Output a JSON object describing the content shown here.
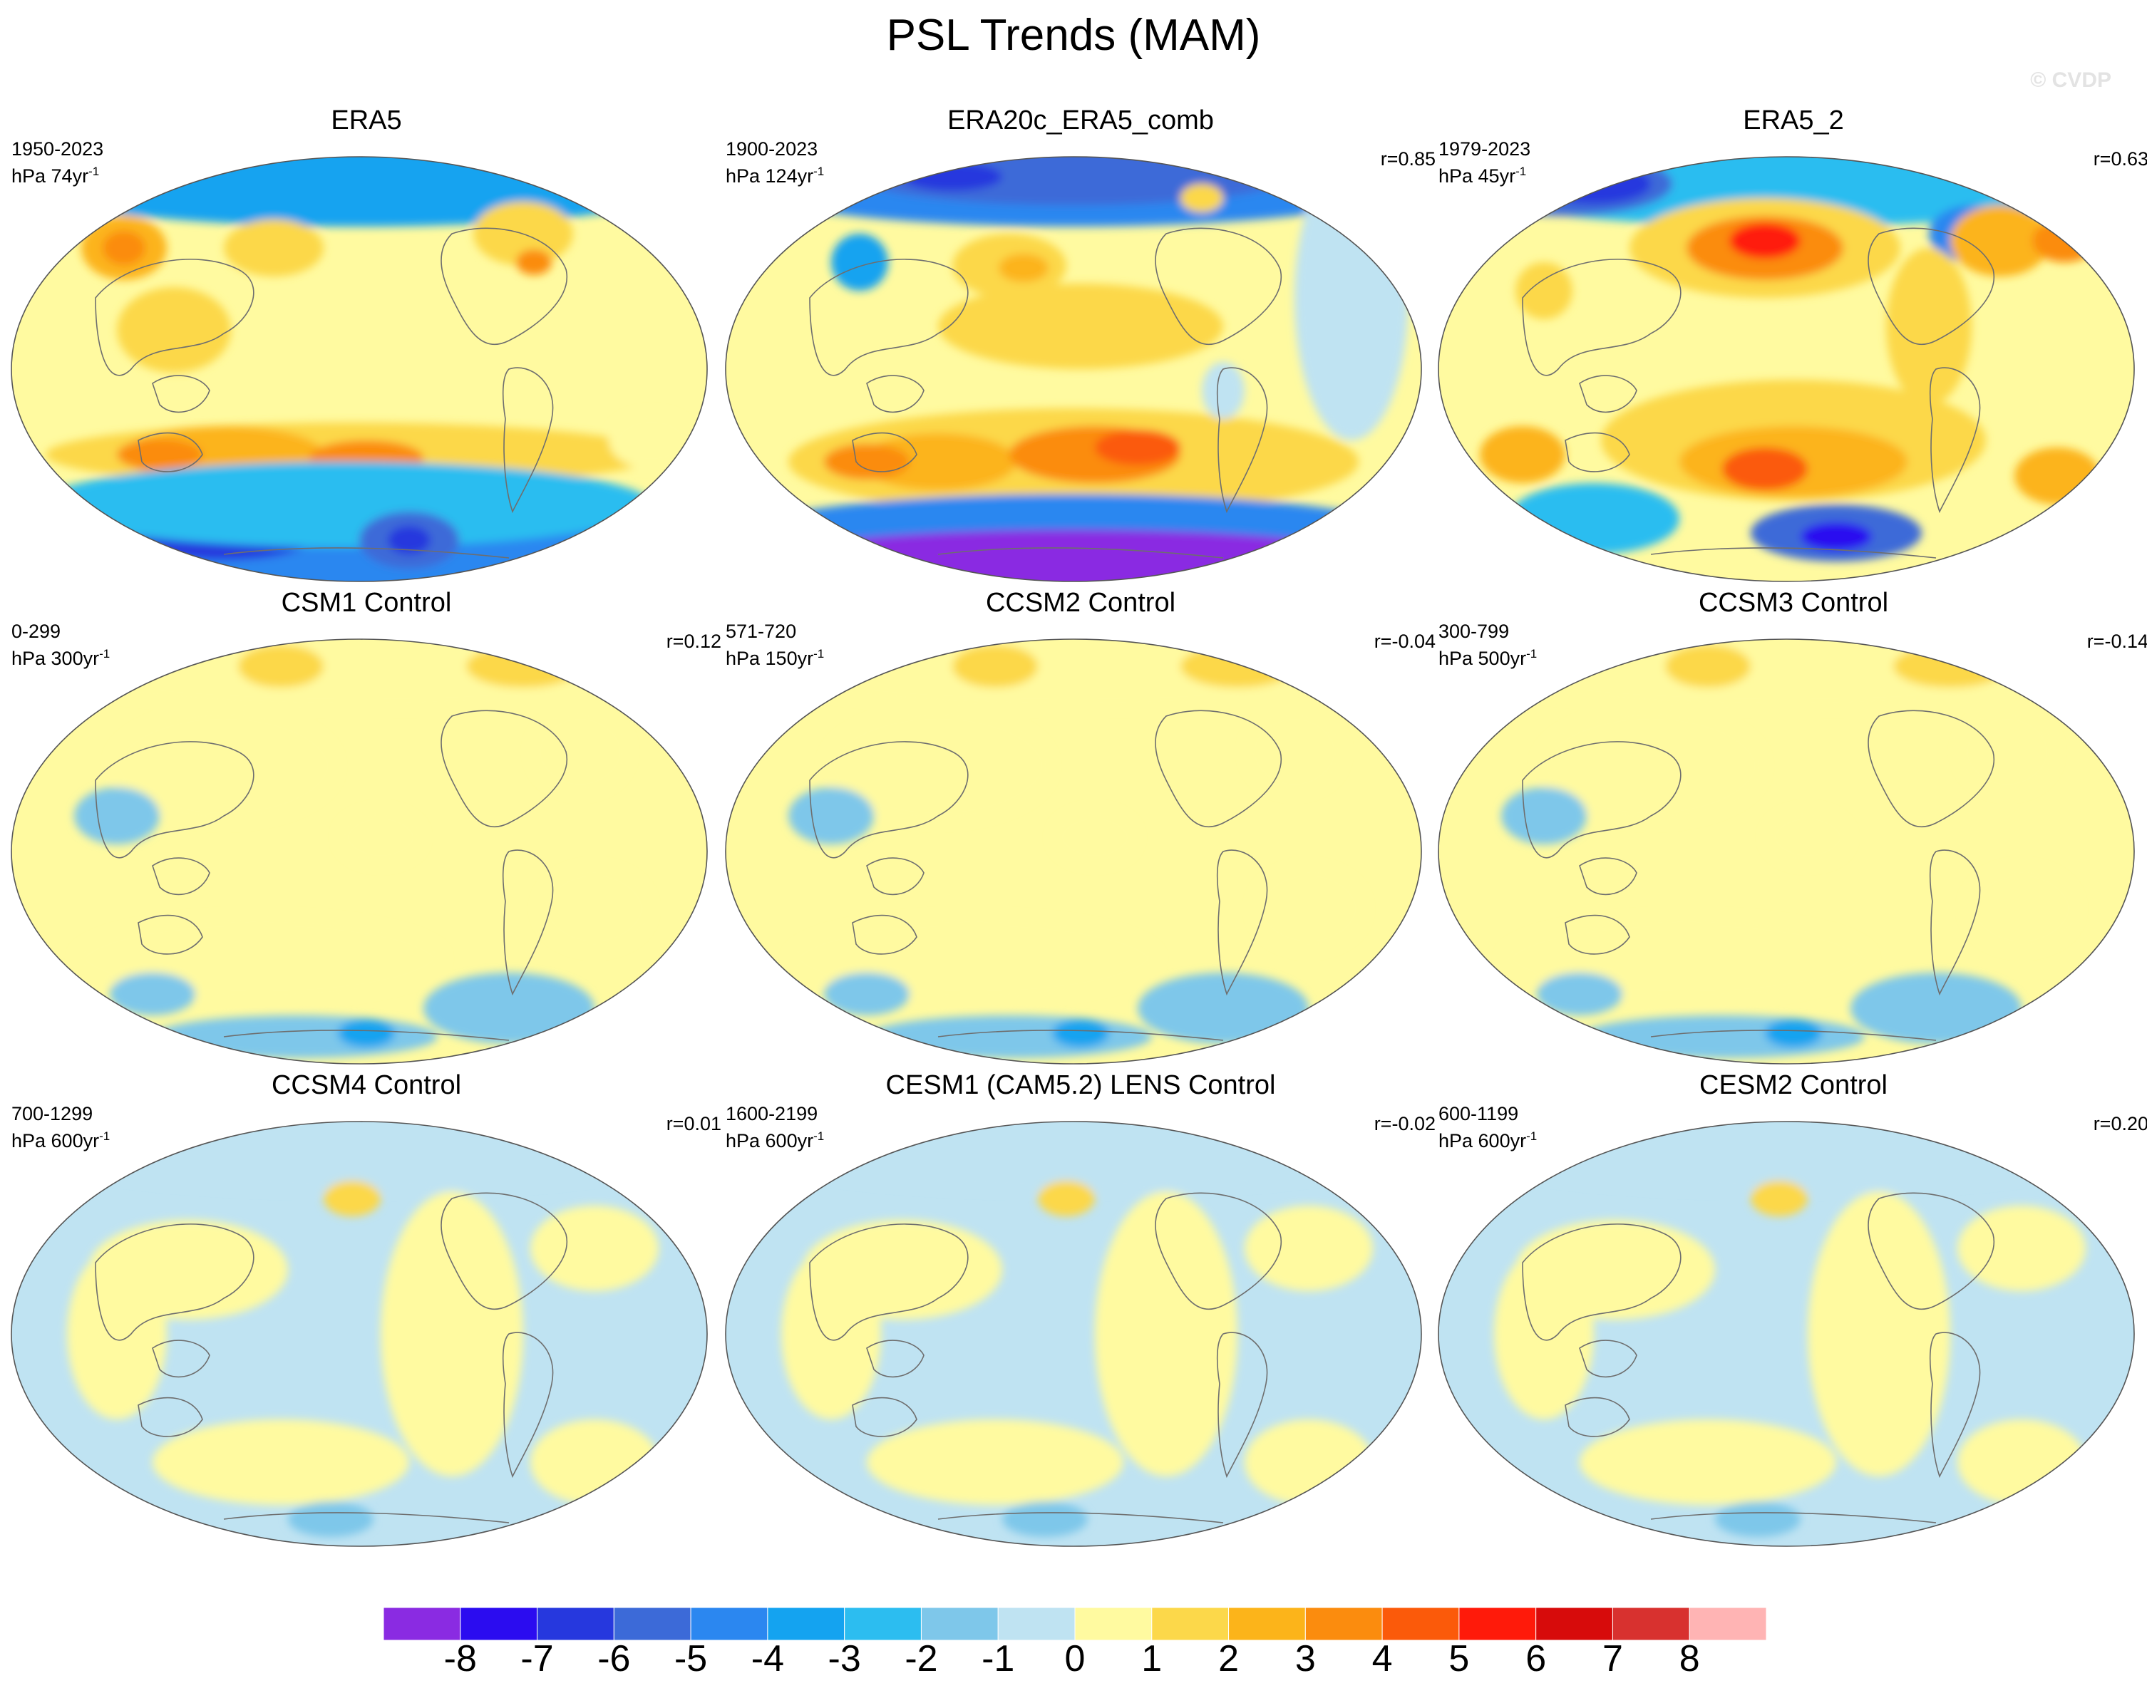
{
  "title": "PSL Trends (MAM)",
  "watermark": "© CVDP",
  "panels": [
    {
      "title": "ERA5",
      "period": "1950-2023",
      "units": "hPa 74yr",
      "units_exp": "-1",
      "corr": "",
      "pattern": "era5"
    },
    {
      "title": "ERA20c_ERA5_comb",
      "period": "1900-2023",
      "units": "hPa 124yr",
      "units_exp": "-1",
      "corr": "r=0.85",
      "pattern": "era20c"
    },
    {
      "title": "ERA5_2",
      "period": "1979-2023",
      "units": "hPa 45yr",
      "units_exp": "-1",
      "corr": "r=0.63",
      "pattern": "era5_2"
    },
    {
      "title": "CSM1 Control",
      "period": "0-299",
      "units": "hPa 300yr",
      "units_exp": "-1",
      "corr": "r=0.12",
      "pattern": "weak"
    },
    {
      "title": "CCSM2 Control",
      "period": "571-720",
      "units": "hPa 150yr",
      "units_exp": "-1",
      "corr": "r=-0.04",
      "pattern": "weak"
    },
    {
      "title": "CCSM3 Control",
      "period": "300-799",
      "units": "hPa 500yr",
      "units_exp": "-1",
      "corr": "r=-0.14",
      "pattern": "weak"
    },
    {
      "title": "CCSM4 Control",
      "period": "700-1299",
      "units": "hPa 600yr",
      "units_exp": "-1",
      "corr": "r=0.01",
      "pattern": "flat"
    },
    {
      "title": "CESM1 (CAM5.2) LENS Control",
      "period": "1600-2199",
      "units": "hPa 600yr",
      "units_exp": "-1",
      "corr": "r=-0.02",
      "pattern": "flat"
    },
    {
      "title": "CESM2 Control",
      "period": "600-1199",
      "units": "hPa 600yr",
      "units_exp": "-1",
      "corr": "r=0.20",
      "pattern": "flat"
    }
  ],
  "colorbar": {
    "labels": [
      "-8",
      "-7",
      "-6",
      "-5",
      "-4",
      "-3",
      "-2",
      "-1",
      "0",
      "1",
      "2",
      "3",
      "4",
      "5",
      "6",
      "7",
      "8"
    ],
    "colors": [
      "#8a2be2",
      "#2b0cf0",
      "#2638de",
      "#3c6ad8",
      "#2b87f0",
      "#14a3f0",
      "#2cbdf0",
      "#7ec7ea",
      "#bfe3f2",
      "#fffaa0",
      "#fcd84a",
      "#fcb41a",
      "#fb8c0e",
      "#fb5a0a",
      "#ff1a0a",
      "#d70b0b",
      "#d8312f",
      "#ffb4b4"
    ]
  }
}
